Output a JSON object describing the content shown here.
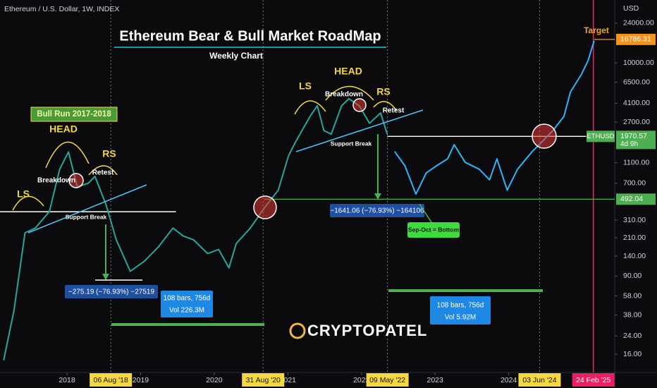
{
  "header": {
    "symbol": "Ethereum / U.S. Dollar, 1W, INDEX",
    "currency": "USD"
  },
  "chart_data": {
    "type": "line",
    "title": "Ethereum Bear & Bull Market RoadMap",
    "subtitle": "Weekly Chart",
    "log_y": true,
    "xlim": [
      2017.09,
      2025.44
    ],
    "xticks": [
      2018,
      2019,
      2020,
      2021,
      2022,
      2023,
      2024,
      {
        "value": 2018.595,
        "label": "06 Aug '18"
      },
      {
        "value": 2020.664,
        "label": "31 Aug '20"
      },
      {
        "value": 2022.353,
        "label": "09 May '22"
      },
      {
        "value": 2024.42,
        "label": "03 Jun '24"
      },
      {
        "value": 2025.15,
        "label": "24 Feb '25"
      }
    ],
    "ylim": [
      10.7,
      40100
    ],
    "yticks": [
      {
        "value": 16,
        "label": "16.00"
      },
      {
        "value": 24,
        "label": "24.00"
      },
      {
        "value": 38,
        "label": "38.00"
      },
      {
        "value": 58,
        "label": "58.00"
      },
      {
        "value": 90,
        "label": "90.00"
      },
      {
        "value": 140,
        "label": "140.00"
      },
      {
        "value": 210,
        "label": "210.00"
      },
      {
        "value": 310,
        "label": "310.00"
      },
      {
        "value": 700,
        "label": "700.00"
      },
      {
        "value": 1100,
        "label": "1100.00"
      },
      {
        "value": 2700,
        "label": "2700.00"
      },
      {
        "value": 4100,
        "label": "4100.00"
      },
      {
        "value": 6500,
        "label": "6500.00"
      },
      {
        "value": 10000,
        "label": "10000.00"
      },
      {
        "value": 24000,
        "label": "24000.00"
      }
    ],
    "series": [
      {
        "color": "#26a69a",
        "x": [
          2017.14,
          2017.28,
          2017.43,
          2017.57,
          2017.76,
          2017.9,
          2018.02,
          2018.14,
          2018.29,
          2018.38,
          2018.53,
          2018.67,
          2018.86,
          2019.05,
          2019.24,
          2019.44,
          2019.58,
          2019.72,
          2019.91,
          2020.06,
          2020.2,
          2020.3,
          2020.49,
          2020.68,
          2020.87,
          2021.01,
          2021.11,
          2021.3,
          2021.4,
          2021.49,
          2021.59,
          2021.73,
          2021.83,
          2021.97,
          2022.11,
          2022.26,
          2022.35
        ],
        "values": [
          14,
          42,
          234,
          260,
          374,
          950,
          1400,
          645,
          700,
          815,
          436,
          200,
          100,
          125,
          171,
          260,
          218,
          200,
          148,
          162,
          108,
          185,
          260,
          405,
          600,
          1290,
          1770,
          3060,
          3880,
          2240,
          2070,
          3880,
          4530,
          3880,
          2630,
          3310,
          2070
        ]
      },
      {
        "color": "#29b6f6",
        "x": [
          2022.45,
          2022.59,
          2022.74,
          2022.88,
          2023.02,
          2023.17,
          2023.26,
          2023.41,
          2023.6,
          2023.74,
          2023.84,
          2023.98,
          2024.12,
          2024.32,
          2024.46,
          2024.6,
          2024.75,
          2024.84,
          2024.99,
          2025.08,
          2025.16
        ],
        "values": [
          1410,
          1030,
          550,
          880,
          1030,
          1200,
          1640,
          1110,
          955,
          755,
          1200,
          600,
          955,
          1410,
          1770,
          2240,
          3060,
          5270,
          7800,
          10600,
          16300
        ]
      }
    ],
    "price_tags": [
      {
        "value": 16786.31,
        "color": "#f7931a",
        "from": 2025.16
      },
      {
        "value": 1970.57,
        "color": "#4caf50",
        "line_color": "#ffffff",
        "from": 2022.35,
        "to": 2025.05,
        "symbol": "ETHUSD",
        "countdown": "4d 9h"
      },
      {
        "value": 492.04,
        "color": "#4caf50",
        "from": 2020.68
      }
    ],
    "hlines": [
      {
        "value": 373,
        "color": "#ffffff",
        "from": 2017.09,
        "to": 2019.48
      }
    ],
    "annotations": [
      "Bull Run 2017-2018",
      "LS",
      "HEAD",
      "RS",
      "Breakdown",
      "Retest",
      "Support Break",
      "−275.19 (−76.93%) −27519",
      "108 bars, 756d",
      "Vol 226.3M",
      "LS",
      "HEAD",
      "RS",
      "Breakdown",
      "Retest",
      "Support Break",
      "−1641.06 (−76.93%) −164106",
      "Sep-Oct = Bottom",
      "108 bars, 756d",
      "Vol 5.92M",
      "Target"
    ],
    "watermark": "CRYPTOPATEL"
  }
}
